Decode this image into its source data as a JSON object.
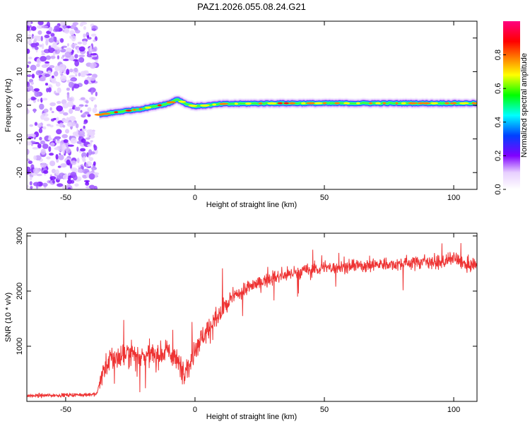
{
  "chart_data": [
    {
      "type": "heatmap",
      "title": "PAZ1.2026.055.08.24.G21",
      "xlabel": "Height of straight line (km)",
      "ylabel": "Frequency (Hz)",
      "xlim": [
        -65,
        109
      ],
      "ylim": [
        -25,
        25
      ],
      "xticks": [
        -50,
        0,
        50,
        100
      ],
      "yticks": [
        -20,
        -10,
        0,
        10,
        20
      ],
      "ridge": {
        "x": [
          -37,
          -30,
          -20,
          -10,
          -7,
          -3,
          0,
          5,
          10,
          20,
          30,
          50,
          70,
          90,
          109
        ],
        "y": [
          -2.8,
          -2,
          -1,
          0.6,
          1.8,
          0.3,
          -0.3,
          0,
          0.4,
          0.5,
          0.6,
          0.6,
          0.6,
          0.6,
          0.6
        ]
      },
      "noise_region_x": [
        -65,
        -38
      ],
      "colorbar": {
        "label": "Normalized spectral amplitude",
        "range": [
          0,
          1
        ],
        "ticks": [
          "0.0",
          "0.2",
          "0.4",
          "0.6",
          "0.8"
        ],
        "colors": [
          "#ffffff",
          "#8000ff",
          "#0040ff",
          "#00ffff",
          "#00ff00",
          "#ffff00",
          "#ff8000",
          "#ff0000",
          "#ff0080"
        ]
      }
    },
    {
      "type": "line",
      "xlabel": "Height of straight line (km)",
      "ylabel": "SNR (10 * v/v)",
      "xlim": [
        -65,
        109
      ],
      "ylim": [
        0,
        3050
      ],
      "xticks": [
        -50,
        0,
        50,
        100
      ],
      "yticks": [
        1000,
        2000,
        3000
      ],
      "color": "#ee3333",
      "series": [
        {
          "name": "SNR",
          "x": [
            -65,
            -55,
            -45,
            -38,
            -36,
            -33,
            -30,
            -25,
            -20,
            -15,
            -10,
            -5,
            -2,
            0,
            5,
            10,
            15,
            20,
            30,
            40,
            50,
            60,
            70,
            80,
            90,
            95,
            100,
            105,
            109
          ],
          "y": [
            100,
            110,
            120,
            130,
            500,
            750,
            800,
            900,
            820,
            850,
            900,
            600,
            650,
            1000,
            1300,
            1600,
            1900,
            2050,
            2250,
            2350,
            2420,
            2450,
            2480,
            2500,
            2550,
            2500,
            2600,
            2450,
            2500
          ]
        }
      ]
    }
  ]
}
